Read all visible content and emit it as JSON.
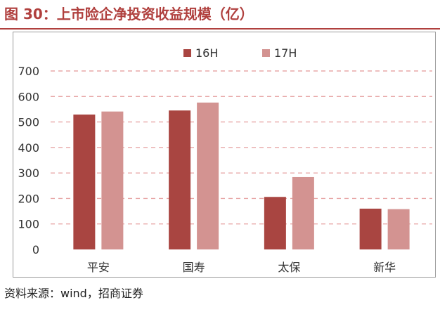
{
  "title": "图 30：上市险企净投资收益规模（亿）",
  "source": "资料来源：wind，招商证券",
  "colors": {
    "title": "#b0403e",
    "series_16H": "#a94541",
    "series_17H": "#d39391",
    "grid": "#e8a8a8",
    "axis_text": "#333333"
  },
  "chart_data": {
    "type": "bar",
    "categories": [
      "平安",
      "国寿",
      "太保",
      "新华"
    ],
    "series": [
      {
        "name": "16H",
        "values": [
          529,
          545,
          206,
          160
        ]
      },
      {
        "name": "17H",
        "values": [
          541,
          576,
          284,
          158
        ]
      }
    ],
    "yticks": [
      "0",
      "100",
      "200",
      "300",
      "400",
      "500",
      "600",
      "700"
    ],
    "ylim": [
      0,
      700
    ],
    "grid": true,
    "grid_style": "dashed",
    "legend_position": "top-center",
    "xlabel": "",
    "ylabel": ""
  }
}
